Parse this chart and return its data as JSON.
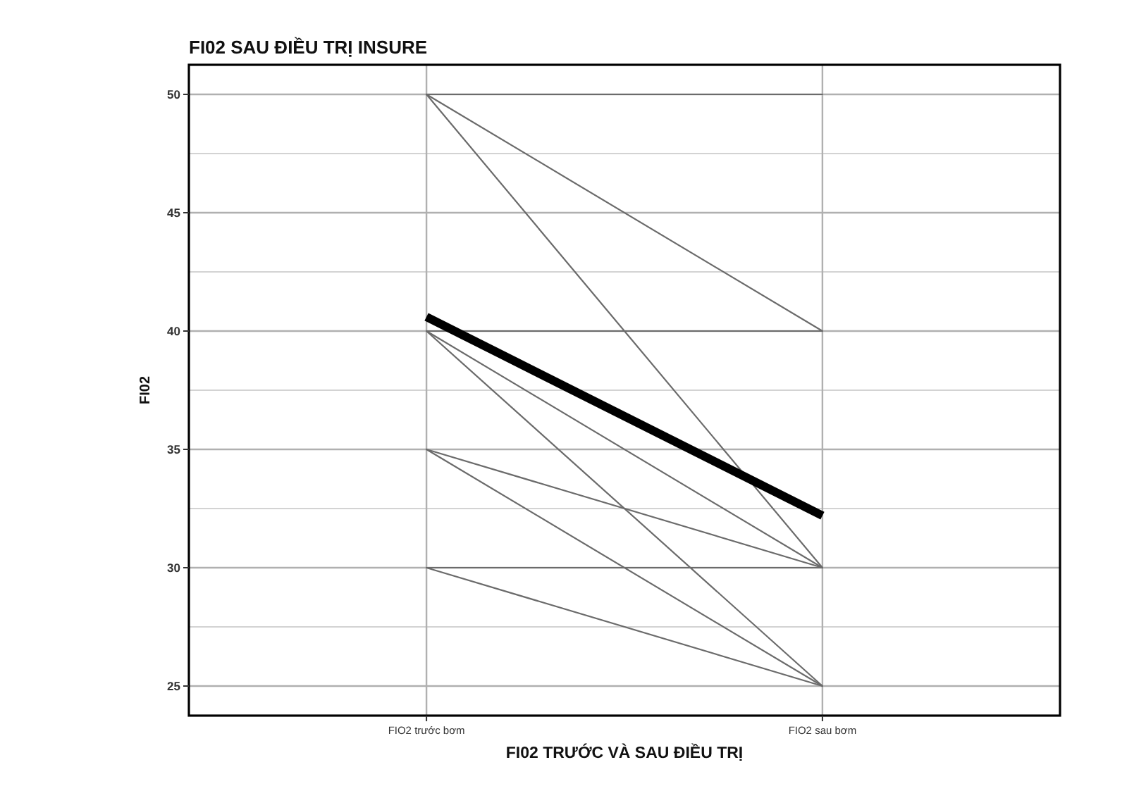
{
  "chart_data": {
    "type": "line",
    "title": "FI02 SAU ĐIỀU TRỊ INSURE",
    "xlabel": "FI02 TRƯỚC VÀ SAU ĐIỀU TRỊ",
    "ylabel": "FI02",
    "categories": [
      "FIO2 trước bơm",
      "FIO2 sau bơm"
    ],
    "series": [
      {
        "color": "#6b6b6b",
        "values": [
          50,
          50
        ]
      },
      {
        "color": "#6b6b6b",
        "values": [
          50,
          40
        ]
      },
      {
        "color": "#6b6b6b",
        "values": [
          50,
          30
        ]
      },
      {
        "color": "#6b6b6b",
        "values": [
          40,
          40
        ]
      },
      {
        "color": "#6b6b6b",
        "values": [
          40,
          30
        ]
      },
      {
        "color": "#6b6b6b",
        "values": [
          40,
          25
        ]
      },
      {
        "color": "#6b6b6b",
        "values": [
          35,
          30
        ]
      },
      {
        "color": "#6b6b6b",
        "values": [
          35,
          25
        ]
      },
      {
        "color": "#6b6b6b",
        "values": [
          30,
          30
        ]
      },
      {
        "color": "#6b6b6b",
        "values": [
          30,
          25
        ]
      },
      {
        "color": "#000000",
        "values": [
          40.6,
          32.2
        ]
      }
    ],
    "ylim": [
      23.75,
      51.25
    ],
    "yticks": [
      25,
      30,
      35,
      40,
      45,
      50
    ],
    "grid": true,
    "marker": "none",
    "line_style": "solid"
  }
}
